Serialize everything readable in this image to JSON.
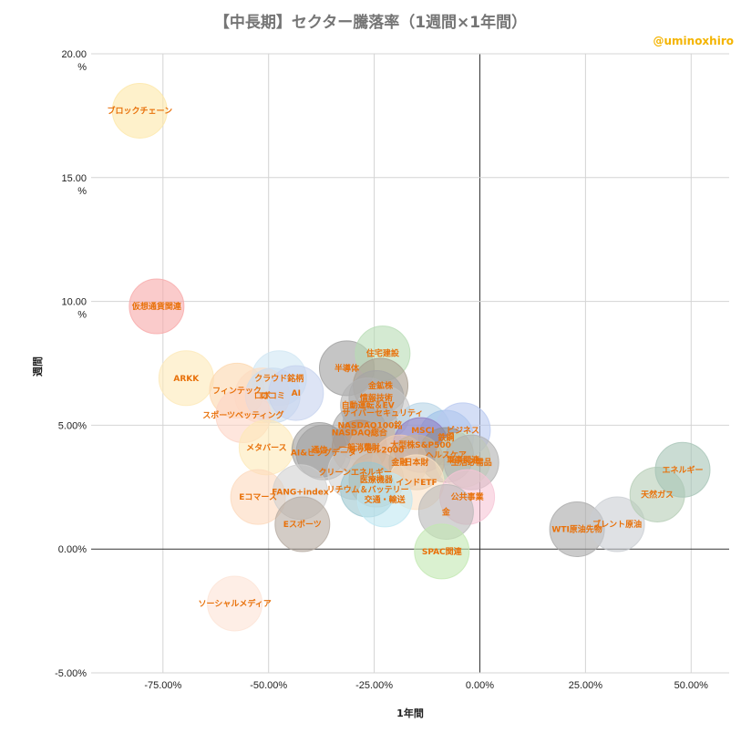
{
  "chart_data": {
    "type": "scatter",
    "title": "【中長期】セクター騰落率（1週間×1年間）",
    "credit": "@uminoxhiro",
    "xlabel": "1年間",
    "ylabel": "週間",
    "xlim": [
      -92,
      59
    ],
    "ylim": [
      -5,
      20
    ],
    "x_ticks": [
      {
        "value": -75,
        "label": "-75.00%"
      },
      {
        "value": -50,
        "label": "-50.00%"
      },
      {
        "value": -25,
        "label": "-25.00%"
      },
      {
        "value": 0,
        "label": "0.00%"
      },
      {
        "value": 25,
        "label": "25.00%"
      },
      {
        "value": 50,
        "label": "50.00%"
      }
    ],
    "y_ticks": [
      {
        "value": 20,
        "label": "20.00",
        "label2": "%"
      },
      {
        "value": 15,
        "label": "15.00",
        "label2": "%"
      },
      {
        "value": 10,
        "label": "10.00",
        "label2": "%"
      },
      {
        "value": 5,
        "label": "5.00%",
        "label2": ""
      },
      {
        "value": 0,
        "label": "0.00%",
        "label2": ""
      },
      {
        "value": -5,
        "label": "-5.00%",
        "label2": ""
      }
    ],
    "points": [
      {
        "name": "ブロックチェーン",
        "x": -80.5,
        "y": 17.7,
        "color": "#fde7a8"
      },
      {
        "name": "仮想通貨関連",
        "x": -76.5,
        "y": 9.8,
        "color": "#f7a8a8"
      },
      {
        "name": "ARKK",
        "x": -69.5,
        "y": 6.9,
        "color": "#fde9b8"
      },
      {
        "name": "フィンテック",
        "x": -57.5,
        "y": 6.4,
        "color": "#fcd7ae"
      },
      {
        "name": "クラウド銘柄",
        "x": -47.5,
        "y": 6.9,
        "color": "#cfe6f3"
      },
      {
        "name": "ロボ",
        "x": -51.5,
        "y": 6.2,
        "color": "#fcdcc2"
      },
      {
        "name": "ロコミ",
        "x": -49,
        "y": 6.2,
        "color": "#c9dcf0"
      },
      {
        "name": "AI",
        "x": -43.5,
        "y": 6.3,
        "color": "#c6d2ee"
      },
      {
        "name": "スポーツベッティング",
        "x": -56,
        "y": 5.4,
        "color": "#fdd5c7"
      },
      {
        "name": "メタバース",
        "x": -50.5,
        "y": 4.1,
        "color": "#fde9b8"
      },
      {
        "name": "半導体",
        "x": -31.5,
        "y": 7.3,
        "color": "#9e9e9e"
      },
      {
        "name": "住宅建設",
        "x": -23,
        "y": 7.9,
        "color": "#b7dcb4"
      },
      {
        "name": "金鉱株",
        "x": -23.5,
        "y": 6.6,
        "color": "#a89c8e"
      },
      {
        "name": "情報技術",
        "x": -24.5,
        "y": 6.1,
        "color": "#a5a5a5"
      },
      {
        "name": "自動運転＆EV",
        "x": -26.5,
        "y": 5.8,
        "color": "#b3b3b3"
      },
      {
        "name": "サイバーセキュリティ",
        "x": -23,
        "y": 5.5,
        "color": "#c4c4c4"
      },
      {
        "name": "NASDAQ100銘",
        "x": -26,
        "y": 5.0,
        "color": "#b0b0b0"
      },
      {
        "name": "NASDAQ総合",
        "x": -28.5,
        "y": 4.7,
        "color": "#a9a9a9"
      },
      {
        "name": "通信",
        "x": -38,
        "y": 4.0,
        "color": "#9e9e9e"
      },
      {
        "name": "一般消費財",
        "x": -28.5,
        "y": 4.1,
        "color": "#b58c6e"
      },
      {
        "name": "ラッセル2000",
        "x": -24.5,
        "y": 4.0,
        "color": "#c8b6a6"
      },
      {
        "name": "AI&ビッグデータ",
        "x": -37,
        "y": 3.9,
        "color": "#a0a0a0"
      },
      {
        "name": "MSCI",
        "x": -13.5,
        "y": 4.8,
        "color": "#b6d3e6"
      },
      {
        "name": "鉄鋼",
        "x": -8,
        "y": 4.5,
        "color": "#9fc0ea"
      },
      {
        "name": "ビジネス",
        "x": -4,
        "y": 4.8,
        "color": "#b8c8f0"
      },
      {
        "name": "大型株S&P500",
        "x": -14,
        "y": 4.2,
        "color": "#8e7cc3"
      },
      {
        "name": "ヘルスケア",
        "x": -8,
        "y": 3.8,
        "color": "#8e8e8e"
      },
      {
        "name": "軍事関連",
        "x": -4,
        "y": 3.6,
        "color": "#d6e9c6"
      },
      {
        "name": "生活必需品",
        "x": -2,
        "y": 3.5,
        "color": "#b0b0b0"
      },
      {
        "name": "金融",
        "x": -19,
        "y": 3.5,
        "color": "#f0c9b0"
      },
      {
        "name": "日本財",
        "x": -15,
        "y": 3.5,
        "color": "#c4b29a"
      },
      {
        "name": "クリーンエネルギー",
        "x": -29.5,
        "y": 3.1,
        "color": "#d2d2d2"
      },
      {
        "name": "医療機器",
        "x": -24.5,
        "y": 2.8,
        "color": "#c9b49e"
      },
      {
        "name": "インドETF",
        "x": -15,
        "y": 2.7,
        "color": "#fbe3c6"
      },
      {
        "name": "Eコマース",
        "x": -52.5,
        "y": 2.1,
        "color": "#fdd9bd"
      },
      {
        "name": "FANG+index",
        "x": -42.5,
        "y": 2.3,
        "color": "#d0d0d0"
      },
      {
        "name": "リチウム＆バッテリー",
        "x": -26.5,
        "y": 2.4,
        "color": "#9bc7cf"
      },
      {
        "name": "交通・輸送",
        "x": -22.5,
        "y": 2.0,
        "color": "#bfe7f2"
      },
      {
        "name": "公共事業",
        "x": -3,
        "y": 2.1,
        "color": "#f6c4d6"
      },
      {
        "name": "金",
        "x": -8,
        "y": 1.5,
        "color": "#b8b8b8"
      },
      {
        "name": "Eスポーツ",
        "x": -42,
        "y": 1.0,
        "color": "#b5aaa0"
      },
      {
        "name": "SPAC関連",
        "x": -9,
        "y": -0.1,
        "color": "#c2e8b0"
      },
      {
        "name": "WTI原油先物",
        "x": 23,
        "y": 0.8,
        "color": "#a9a9a9"
      },
      {
        "name": "ブレント原油",
        "x": 32.5,
        "y": 1.0,
        "color": "#c9cdd2"
      },
      {
        "name": "天然ガス",
        "x": 42,
        "y": 2.2,
        "color": "#b5cdb5"
      },
      {
        "name": "エネルギー",
        "x": 48,
        "y": 3.2,
        "color": "#a6c4b6"
      },
      {
        "name": "ソーシャルメディア",
        "x": -58,
        "y": -2.2,
        "color": "#fde3d6"
      }
    ]
  }
}
